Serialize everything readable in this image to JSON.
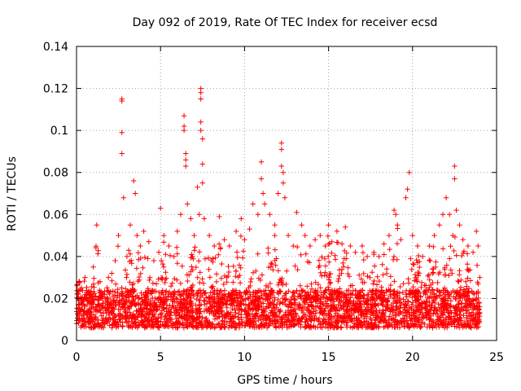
{
  "chart_data": {
    "type": "scatter",
    "title": "Day 092 of 2019, Rate Of TEC Index for receiver ecsd",
    "xlabel": "GPS time / hours",
    "ylabel": "ROTI / TECUs",
    "xlim": [
      0,
      25
    ],
    "ylim": [
      0,
      0.14
    ],
    "xticks": [
      0,
      5,
      10,
      15,
      20,
      25
    ],
    "xtick_labels": [
      "0",
      "5",
      "10",
      "15",
      "20",
      "25"
    ],
    "yticks": [
      0,
      0.02,
      0.04,
      0.06,
      0.08,
      0.1,
      0.12,
      0.14
    ],
    "ytick_labels": [
      "0",
      "0.02",
      "0.04",
      "0.06",
      "0.08",
      "0.1",
      "0.12",
      "0.14"
    ],
    "grid": true,
    "marker": "+",
    "color": "#ff0000",
    "series": [
      {
        "name": "ROTI",
        "points": [
          [
            0.1,
            0.012
          ],
          [
            0.3,
            0.025
          ],
          [
            0.5,
            0.03
          ],
          [
            0.8,
            0.018
          ],
          [
            1.0,
            0.035
          ],
          [
            1.2,
            0.055
          ],
          [
            1.4,
            0.028
          ],
          [
            1.6,
            0.022
          ],
          [
            1.9,
            0.03
          ],
          [
            2.1,
            0.032
          ],
          [
            2.3,
            0.038
          ],
          [
            2.5,
            0.05
          ],
          [
            2.7,
            0.115
          ],
          [
            2.7,
            0.114
          ],
          [
            2.7,
            0.099
          ],
          [
            2.7,
            0.089
          ],
          [
            2.8,
            0.068
          ],
          [
            3.0,
            0.04
          ],
          [
            3.2,
            0.055
          ],
          [
            3.4,
            0.076
          ],
          [
            3.5,
            0.07
          ],
          [
            3.6,
            0.05
          ],
          [
            3.8,
            0.045
          ],
          [
            4.0,
            0.052
          ],
          [
            4.3,
            0.047
          ],
          [
            4.6,
            0.038
          ],
          [
            4.9,
            0.042
          ],
          [
            5.0,
            0.063
          ],
          [
            5.2,
            0.05
          ],
          [
            5.5,
            0.045
          ],
          [
            5.8,
            0.04
          ],
          [
            6.0,
            0.052
          ],
          [
            6.2,
            0.06
          ],
          [
            6.4,
            0.107
          ],
          [
            6.4,
            0.102
          ],
          [
            6.4,
            0.1
          ],
          [
            6.5,
            0.089
          ],
          [
            6.5,
            0.086
          ],
          [
            6.5,
            0.083
          ],
          [
            6.6,
            0.065
          ],
          [
            6.8,
            0.058
          ],
          [
            7.0,
            0.05
          ],
          [
            7.2,
            0.073
          ],
          [
            7.3,
            0.06
          ],
          [
            7.4,
            0.12
          ],
          [
            7.4,
            0.118
          ],
          [
            7.4,
            0.115
          ],
          [
            7.4,
            0.104
          ],
          [
            7.4,
            0.1
          ],
          [
            7.5,
            0.096
          ],
          [
            7.5,
            0.084
          ],
          [
            7.5,
            0.075
          ],
          [
            7.6,
            0.058
          ],
          [
            7.9,
            0.05
          ],
          [
            8.2,
            0.045
          ],
          [
            8.5,
            0.059
          ],
          [
            8.8,
            0.048
          ],
          [
            9.1,
            0.045
          ],
          [
            9.5,
            0.052
          ],
          [
            9.8,
            0.058
          ],
          [
            10.0,
            0.048
          ],
          [
            10.3,
            0.053
          ],
          [
            10.5,
            0.065
          ],
          [
            10.8,
            0.06
          ],
          [
            11.0,
            0.085
          ],
          [
            11.0,
            0.077
          ],
          [
            11.1,
            0.07
          ],
          [
            11.2,
            0.065
          ],
          [
            11.5,
            0.06
          ],
          [
            11.8,
            0.055
          ],
          [
            12.0,
            0.07
          ],
          [
            12.2,
            0.094
          ],
          [
            12.2,
            0.091
          ],
          [
            12.2,
            0.083
          ],
          [
            12.3,
            0.08
          ],
          [
            12.3,
            0.075
          ],
          [
            12.4,
            0.068
          ],
          [
            12.6,
            0.05
          ],
          [
            12.9,
            0.045
          ],
          [
            13.1,
            0.061
          ],
          [
            13.4,
            0.055
          ],
          [
            13.6,
            0.05
          ],
          [
            13.9,
            0.045
          ],
          [
            14.2,
            0.048
          ],
          [
            14.5,
            0.05
          ],
          [
            14.8,
            0.045
          ],
          [
            15.0,
            0.055
          ],
          [
            15.2,
            0.047
          ],
          [
            15.5,
            0.052
          ],
          [
            15.8,
            0.046
          ],
          [
            16.0,
            0.054
          ],
          [
            16.3,
            0.045
          ],
          [
            16.6,
            0.042
          ],
          [
            17.0,
            0.045
          ],
          [
            17.3,
            0.04
          ],
          [
            17.7,
            0.042
          ],
          [
            18.0,
            0.04
          ],
          [
            18.3,
            0.046
          ],
          [
            18.6,
            0.05
          ],
          [
            18.9,
            0.062
          ],
          [
            19.0,
            0.06
          ],
          [
            19.1,
            0.055
          ],
          [
            19.3,
            0.048
          ],
          [
            19.6,
            0.068
          ],
          [
            19.7,
            0.072
          ],
          [
            19.8,
            0.08
          ],
          [
            20.0,
            0.05
          ],
          [
            20.3,
            0.045
          ],
          [
            20.6,
            0.04
          ],
          [
            21.0,
            0.045
          ],
          [
            21.3,
            0.05
          ],
          [
            21.6,
            0.055
          ],
          [
            21.8,
            0.06
          ],
          [
            22.0,
            0.068
          ],
          [
            22.2,
            0.06
          ],
          [
            22.4,
            0.05
          ],
          [
            22.5,
            0.083
          ],
          [
            22.5,
            0.077
          ],
          [
            22.6,
            0.062
          ],
          [
            22.8,
            0.055
          ],
          [
            23.0,
            0.048
          ],
          [
            23.3,
            0.045
          ],
          [
            23.6,
            0.042
          ],
          [
            23.8,
            0.052
          ],
          [
            23.9,
            0.045
          ],
          [
            24.0,
            0.03
          ]
        ]
      }
    ]
  }
}
